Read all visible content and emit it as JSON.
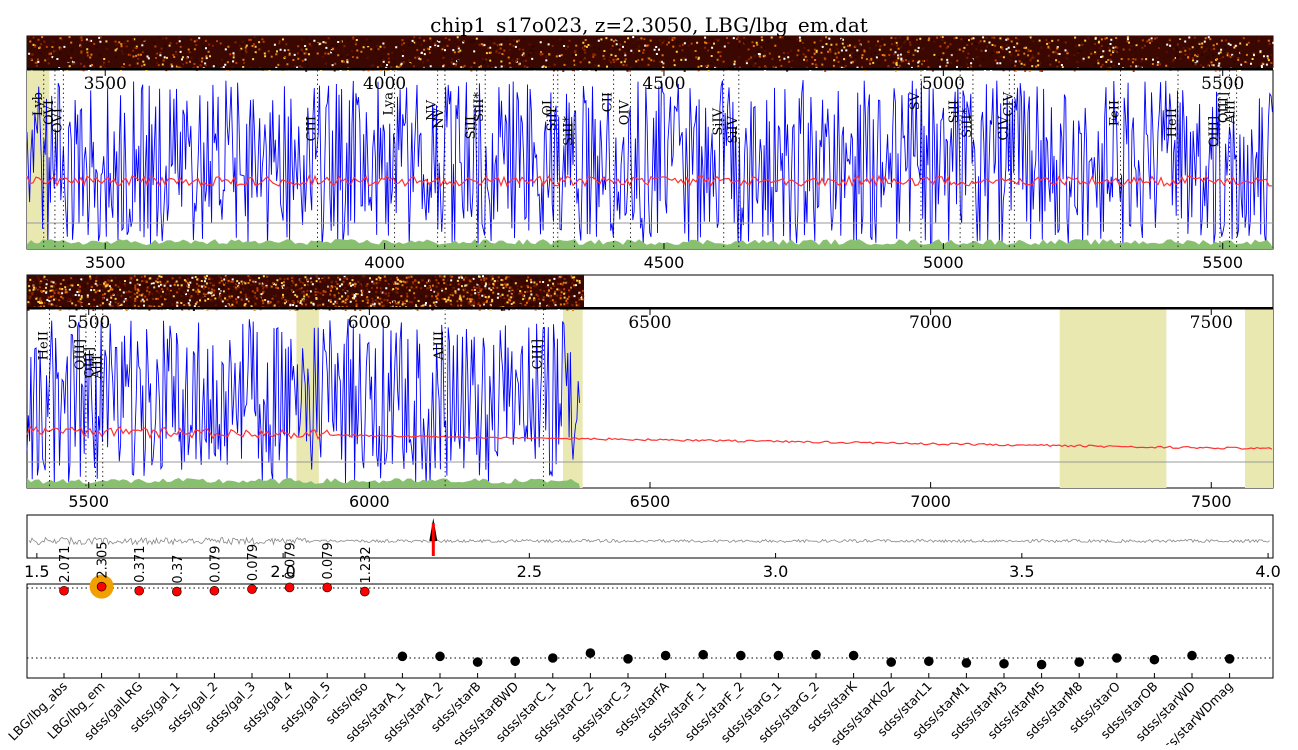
{
  "title": "chip1_s17o023, z=2.3050, LBG/lbg_em.dat",
  "chart_data": [
    {
      "type": "line",
      "panel": "spectrum-1",
      "xlim": [
        3360,
        5590
      ],
      "ticks": [
        3500,
        4000,
        4500,
        5000,
        5500
      ],
      "tick_labels_top": [
        "3500",
        "4000",
        "4500",
        "5000",
        "5500"
      ],
      "tick_labels_bottom": [
        "3500",
        "4000",
        "4500",
        "5000",
        "5500"
      ],
      "lines": [
        {
          "label": "Lyb",
          "x": 3390
        },
        {
          "label": "OVI",
          "x": 3410
        },
        {
          "label": "OVI",
          "x": 3425
        },
        {
          "label": "CIII",
          "x": 3880
        },
        {
          "label": "Lya",
          "x": 4018
        },
        {
          "label": "NV",
          "x": 4095
        },
        {
          "label": "NV",
          "x": 4108
        },
        {
          "label": "SiII",
          "x": 4165
        },
        {
          "label": "SiII*",
          "x": 4180
        },
        {
          "label": "OI",
          "x": 4302
        },
        {
          "label": "SiII",
          "x": 4310
        },
        {
          "label": "SiII*",
          "x": 4340
        },
        {
          "label": "CII",
          "x": 4410
        },
        {
          "label": "OIV",
          "x": 4440
        },
        {
          "label": "SiIV",
          "x": 4607
        },
        {
          "label": "SiIV",
          "x": 4634
        },
        {
          "label": "SV",
          "x": 4960
        },
        {
          "label": "SiII",
          "x": 5030
        },
        {
          "label": "SiII*",
          "x": 5053
        },
        {
          "label": "CIV",
          "x": 5118
        },
        {
          "label": "CIV",
          "x": 5127
        },
        {
          "label": "FeII",
          "x": 5317
        },
        {
          "label": "HeII",
          "x": 5420
        },
        {
          "label": "OIII]",
          "x": 5495
        },
        {
          "label": "OIII]",
          "x": 5512
        },
        {
          "label": "AlII",
          "x": 5525
        }
      ],
      "shaded": [
        [
          3360,
          3400
        ]
      ]
    },
    {
      "type": "line",
      "panel": "spectrum-2",
      "xlim": [
        5390,
        7610
      ],
      "ticks": [
        5500,
        6000,
        6500,
        7000,
        7500
      ],
      "tick_labels_top": [
        "5500",
        "6000",
        "6500",
        "7000",
        "7500"
      ],
      "tick_labels_bottom": [
        "5500",
        "6000",
        "6500",
        "7000",
        "7500"
      ],
      "lines": [
        {
          "label": "HeII",
          "x": 5430
        },
        {
          "label": "OIII]",
          "x": 5495
        },
        {
          "label": "OIII]",
          "x": 5512
        },
        {
          "label": "AlII",
          "x": 5525
        },
        {
          "label": "AlIII",
          "x": 6135
        },
        {
          "label": "CIII]",
          "x": 6310
        }
      ],
      "shaded": [
        [
          5870,
          5910
        ],
        [
          6345,
          6380
        ],
        [
          7230,
          7420
        ],
        [
          7560,
          7610
        ]
      ]
    },
    {
      "type": "line",
      "panel": "redshift-likelihood",
      "xlim": [
        1.48,
        4.01
      ],
      "x_ticks": [
        1.5,
        2.0,
        2.5,
        3.0,
        3.5,
        4.0
      ],
      "x_tick_labels": [
        "1.5",
        "2.0",
        "2.5",
        "3.0",
        "3.5",
        "4.0"
      ],
      "peak_z": 2.305
    },
    {
      "type": "scatter",
      "panel": "template-fits",
      "categories": [
        "LBG/lbg_abs",
        "LBG/lbg_em",
        "sdss/galLRG",
        "sdss/gal_1",
        "sdss/gal_2",
        "sdss/gal_3",
        "sdss/gal_4",
        "sdss/gal_5",
        "sdss/qso",
        "sdss/starA_1",
        "sdss/starA_2",
        "sdss/starB",
        "sdss/starBWD",
        "sdss/starC_1",
        "sdss/starC_2",
        "sdss/starC_3",
        "sdss/starFA",
        "sdss/starF_1",
        "sdss/starF_2",
        "sdss/starG_1",
        "sdss/starG_2",
        "sdss/starK",
        "sdss/starKloZ",
        "sdss/starL1",
        "sdss/starM1",
        "sdss/starM3",
        "sdss/starM5",
        "sdss/starM8",
        "sdss/starO",
        "sdss/starOB",
        "sdss/starWD",
        "sdss/starWDmag"
      ],
      "values": [
        0.82,
        0.87,
        0.82,
        0.81,
        0.82,
        0.84,
        0.86,
        0.86,
        0.81,
        0.02,
        0.02,
        -0.05,
        -0.04,
        0.0,
        0.06,
        -0.01,
        0.03,
        0.04,
        0.03,
        0.03,
        0.04,
        0.03,
        -0.05,
        -0.04,
        -0.06,
        -0.07,
        -0.08,
        -0.05,
        0.0,
        -0.02,
        0.03,
        -0.01
      ],
      "point_labels": [
        "2.071",
        "2.305",
        "0.371",
        "0.37",
        "0.079",
        "0.079",
        "0.079",
        "0.079",
        "1.232",
        "",
        "",
        "",
        "",
        "",
        "",
        "",
        "",
        "",
        "",
        "",
        "",
        "",
        "",
        "",
        "",
        "",
        "",
        "",
        "",
        "",
        "",
        ""
      ],
      "best_index": 1,
      "colors": {
        "fit": "#ff0000",
        "star": "#000000",
        "best": "#f0a000"
      }
    }
  ],
  "colors": {
    "flux": "#0000ff",
    "model": "#ff3333",
    "error": "#88c070",
    "mask": "#e8e8b0",
    "zero": "#999999",
    "likelihood": "#888888",
    "peak_marker": "#ff0000"
  }
}
